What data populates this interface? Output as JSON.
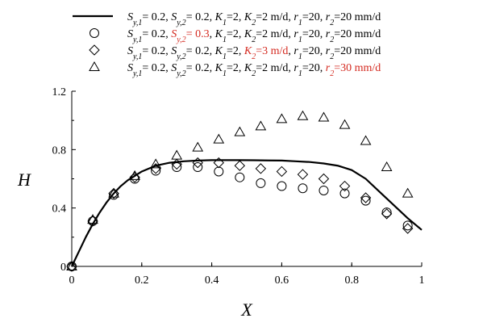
{
  "chart_data": {
    "type": "line",
    "xlabel": "X",
    "ylabel": "H",
    "xlim": [
      0,
      1
    ],
    "ylim": [
      0,
      1.2
    ],
    "x_ticks": [
      "0",
      "0.2",
      "0.4",
      "0.6",
      "0.8",
      "1"
    ],
    "y_ticks": [
      "0",
      "0.4",
      "0.8",
      "1.2"
    ],
    "grid": false,
    "legend_position": "top",
    "highlight_color": "#d42a20",
    "series": [
      {
        "marker": "line",
        "legend": {
          "sy1": "S_{y,1}= 0.2",
          "sy2": "S_{y,2}= 0.2",
          "k1": "K_1=2",
          "k2": "K_2=2 m/d",
          "r1": "r_1=20",
          "r2": "r_2=20 mm/d",
          "highlight": ""
        },
        "x": [
          0,
          0.02,
          0.04,
          0.06,
          0.08,
          0.1,
          0.12,
          0.14,
          0.16,
          0.18,
          0.2,
          0.24,
          0.28,
          0.32,
          0.36,
          0.4,
          0.44,
          0.48,
          0.52,
          0.56,
          0.6,
          0.64,
          0.68,
          0.72,
          0.76,
          0.8,
          0.84,
          0.88,
          0.92,
          0.96,
          1.0
        ],
        "y": [
          0,
          0.1,
          0.2,
          0.29,
          0.37,
          0.44,
          0.5,
          0.55,
          0.59,
          0.62,
          0.65,
          0.69,
          0.71,
          0.72,
          0.725,
          0.728,
          0.728,
          0.728,
          0.727,
          0.726,
          0.725,
          0.72,
          0.715,
          0.705,
          0.69,
          0.66,
          0.6,
          0.51,
          0.42,
          0.33,
          0.25
        ]
      },
      {
        "marker": "circle",
        "legend": {
          "sy1": "S_{y,1}= 0.2",
          "sy2": "S_{y,2}= 0.3",
          "k1": "K_1=2",
          "k2": "K_2=2 m/d",
          "r1": "r_1=20",
          "r2": "r_2=20 mm/d",
          "highlight": "sy2"
        },
        "x": [
          0,
          0.06,
          0.12,
          0.18,
          0.24,
          0.3,
          0.36,
          0.42,
          0.48,
          0.54,
          0.6,
          0.66,
          0.72,
          0.78,
          0.84,
          0.9,
          0.96
        ],
        "y": [
          0,
          0.31,
          0.49,
          0.6,
          0.655,
          0.68,
          0.68,
          0.65,
          0.61,
          0.57,
          0.55,
          0.535,
          0.52,
          0.5,
          0.45,
          0.37,
          0.28
        ]
      },
      {
        "marker": "diamond",
        "legend": {
          "sy1": "S_{y,1}= 0.2",
          "sy2": "S_{y,2}= 0.2",
          "k1": "K_1=2",
          "k2": "K_2=3 m/d",
          "r1": "r_1=20",
          "r2": "r_2=20 mm/d",
          "highlight": "k2"
        },
        "x": [
          0,
          0.06,
          0.12,
          0.18,
          0.24,
          0.3,
          0.36,
          0.42,
          0.48,
          0.54,
          0.6,
          0.66,
          0.72,
          0.78,
          0.84,
          0.9,
          0.96
        ],
        "y": [
          0,
          0.31,
          0.5,
          0.61,
          0.67,
          0.7,
          0.71,
          0.71,
          0.69,
          0.67,
          0.65,
          0.63,
          0.6,
          0.55,
          0.47,
          0.36,
          0.26
        ]
      },
      {
        "marker": "triangle",
        "legend": {
          "sy1": "S_{y,1}= 0.2",
          "sy2": "S_{y,2}= 0.2",
          "k1": "K_1=2",
          "k2": "K_2=2 m/d",
          "r1": "r_1=20",
          "r2": "r_2=30 mm/d",
          "highlight": "r2"
        },
        "x": [
          0,
          0.06,
          0.12,
          0.18,
          0.24,
          0.3,
          0.36,
          0.42,
          0.48,
          0.54,
          0.6,
          0.66,
          0.72,
          0.78,
          0.84,
          0.9,
          0.96
        ],
        "y": [
          0,
          0.32,
          0.5,
          0.62,
          0.7,
          0.76,
          0.815,
          0.87,
          0.92,
          0.96,
          1.01,
          1.03,
          1.02,
          0.97,
          0.86,
          0.68,
          0.5
        ]
      }
    ]
  }
}
